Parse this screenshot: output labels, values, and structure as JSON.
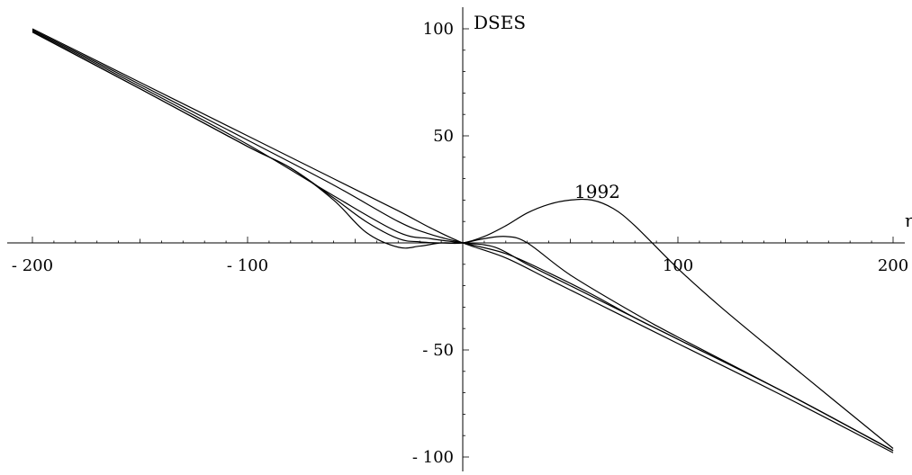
{
  "chart_data": {
    "type": "line",
    "xlabel": "η",
    "ylabel": "DSES",
    "xlim": [
      -205,
      205
    ],
    "ylim": [
      -110,
      110
    ],
    "x_ticks": [
      -200,
      -100,
      100,
      200
    ],
    "x_tick_labels": [
      "- 200",
      "- 100",
      "100",
      "200"
    ],
    "y_ticks": [
      100,
      50,
      -50,
      -100
    ],
    "y_tick_labels": [
      "100",
      "50",
      "- 50",
      "- 100"
    ],
    "grid": false,
    "legend": "none",
    "annotations": [
      {
        "text": "1992",
        "x": 70,
        "y": 25
      }
    ],
    "series": [
      {
        "x": [
          -200,
          -150,
          -100,
          -60,
          -30,
          -15,
          0,
          20,
          40,
          60,
          80,
          100,
          150,
          200
        ],
        "y": [
          100,
          75,
          50,
          30,
          15,
          7,
          0,
          -7,
          -17,
          -27,
          -37,
          -47,
          -72,
          -98
        ]
      },
      {
        "x": [
          -200,
          -150,
          -100,
          -60,
          -30,
          -15,
          0,
          20,
          40,
          60,
          80,
          100,
          150,
          200
        ],
        "y": [
          99.5,
          74,
          48,
          27,
          10,
          4,
          0,
          -5,
          -14,
          -24,
          -35,
          -45,
          -70,
          -97
        ]
      },
      {
        "x": [
          -200,
          -150,
          -100,
          -60,
          -30,
          -15,
          0,
          15,
          30,
          50,
          80,
          100,
          150,
          200
        ],
        "y": [
          99,
          73,
          46,
          22,
          5,
          2,
          0,
          -2,
          -10,
          -20,
          -35,
          -45,
          -70,
          -97
        ]
      },
      {
        "x": [
          -200,
          -150,
          -100,
          -80,
          -60,
          -45,
          -30,
          -20,
          -10,
          0,
          10,
          20,
          30,
          50,
          80,
          100,
          150,
          200
        ],
        "y": [
          98.5,
          72,
          45,
          35,
          20,
          5,
          -2,
          -1.5,
          0,
          0,
          2,
          3,
          0,
          -15,
          -33,
          -44,
          -70,
          -97
        ]
      },
      {
        "x": [
          -200,
          -150,
          -100,
          -80,
          -60,
          -45,
          -30,
          -20,
          -10,
          0,
          10,
          20,
          30,
          40,
          50,
          60,
          70,
          80,
          100,
          120,
          150,
          200
        ],
        "y": [
          98.5,
          72,
          45,
          35,
          21,
          10,
          2,
          0.5,
          0,
          0,
          3,
          8,
          14,
          18,
          20,
          20,
          16,
          8,
          -12,
          -30,
          -55,
          -96
        ]
      }
    ]
  }
}
